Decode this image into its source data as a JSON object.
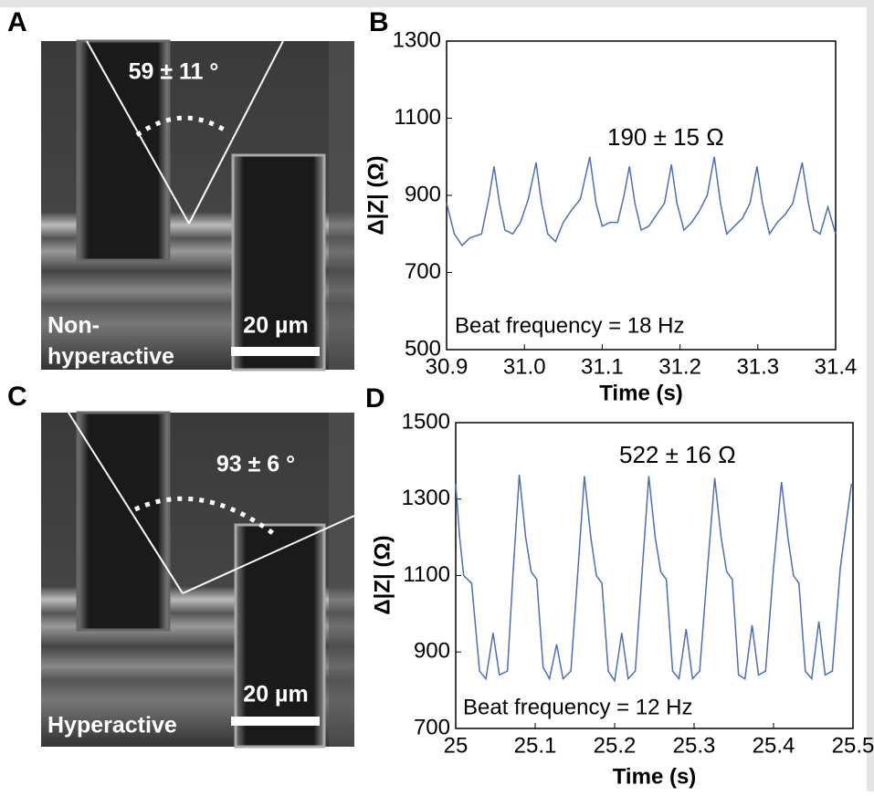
{
  "panels": [
    {
      "label": "A",
      "angle": "59 ± 11 °",
      "condition": [
        "Non-",
        "hyperactive"
      ],
      "scale_bar": "20 µm"
    },
    {
      "label": "C",
      "angle": "93 ± 6 °",
      "condition": [
        "Hyperactive"
      ],
      "scale_bar": "20 µm"
    }
  ],
  "chart_data": [
    {
      "type": "line",
      "label": "B",
      "xlabel": "Time (s)",
      "ylabel": "Δ|Z| (Ω)",
      "color": "#4a6fb5",
      "annotations": [
        "190 ± 15 Ω",
        "Beat frequency = 18 Hz"
      ],
      "xlim": [
        30.9,
        31.4
      ],
      "ylim": [
        500,
        1300
      ],
      "xticks": [
        30.9,
        {
          "value": 31,
          "label": "31.0"
        },
        31.1,
        31.2,
        31.3,
        31.4
      ],
      "yticks": [
        500,
        700,
        900,
        1100,
        1300
      ],
      "x": [
        30.9,
        30.91,
        30.92,
        30.93,
        30.945,
        30.955,
        30.961,
        30.968,
        30.975,
        30.985,
        30.995,
        31.005,
        31.015,
        31.022,
        31.03,
        31.04,
        31.05,
        31.06,
        31.072,
        31.084,
        31.092,
        31.1,
        31.11,
        31.12,
        31.128,
        31.135,
        31.142,
        31.15,
        31.16,
        31.17,
        31.18,
        31.189,
        31.196,
        31.205,
        31.215,
        31.225,
        31.235,
        31.244,
        31.252,
        31.26,
        31.27,
        31.28,
        31.29,
        31.299,
        31.306,
        31.315,
        31.325,
        31.335,
        31.345,
        31.357,
        31.365,
        31.372,
        31.38,
        31.39,
        31.4
      ],
      "values": [
        880,
        800,
        770,
        790,
        800,
        900,
        975,
        880,
        810,
        800,
        830,
        890,
        985,
        880,
        800,
        780,
        830,
        860,
        890,
        1000,
        880,
        820,
        830,
        830,
        900,
        975,
        880,
        810,
        820,
        850,
        880,
        980,
        880,
        810,
        830,
        860,
        900,
        1000,
        880,
        800,
        820,
        840,
        880,
        975,
        880,
        800,
        830,
        850,
        880,
        985,
        880,
        810,
        800,
        870,
        800
      ]
    },
    {
      "type": "line",
      "label": "D",
      "xlabel": "Time (s)",
      "ylabel": "Δ|Z| (Ω)",
      "color": "#4a6fb5",
      "annotations": [
        "522 ± 16 Ω",
        "Beat frequency = 12 Hz"
      ],
      "xlim": [
        25,
        25.5
      ],
      "ylim": [
        700,
        1500
      ],
      "xticks": [
        25,
        25.1,
        25.2,
        25.3,
        25.4,
        25.5
      ],
      "yticks": [
        700,
        900,
        1100,
        1300,
        1500
      ],
      "x": [
        25,
        25.005,
        25.01,
        25.02,
        25.03,
        25.038,
        25.047,
        25.055,
        25.065,
        25.072,
        25.08,
        25.088,
        25.095,
        25.102,
        25.11,
        25.118,
        25.127,
        25.135,
        25.145,
        25.154,
        25.162,
        25.17,
        25.177,
        25.184,
        25.192,
        25.2,
        25.209,
        25.217,
        25.226,
        25.235,
        25.243,
        25.251,
        25.258,
        25.265,
        25.273,
        25.281,
        25.29,
        25.298,
        25.307,
        25.317,
        25.326,
        25.334,
        25.341,
        25.348,
        25.356,
        25.364,
        25.373,
        25.381,
        25.39,
        25.4,
        25.41,
        25.418,
        25.425,
        25.432,
        25.44,
        25.448,
        25.457,
        25.465,
        25.474,
        25.484,
        25.498
      ],
      "values": [
        1340,
        1200,
        1100,
        1080,
        850,
        830,
        950,
        840,
        850,
        1100,
        1364,
        1200,
        1110,
        1090,
        860,
        830,
        920,
        830,
        850,
        1120,
        1360,
        1200,
        1100,
        1080,
        850,
        825,
        950,
        830,
        850,
        1120,
        1360,
        1200,
        1110,
        1090,
        850,
        830,
        960,
        830,
        850,
        1120,
        1355,
        1200,
        1110,
        1090,
        840,
        830,
        970,
        840,
        850,
        1120,
        1345,
        1200,
        1100,
        1080,
        850,
        830,
        980,
        840,
        850,
        1120,
        1340
      ]
    }
  ]
}
